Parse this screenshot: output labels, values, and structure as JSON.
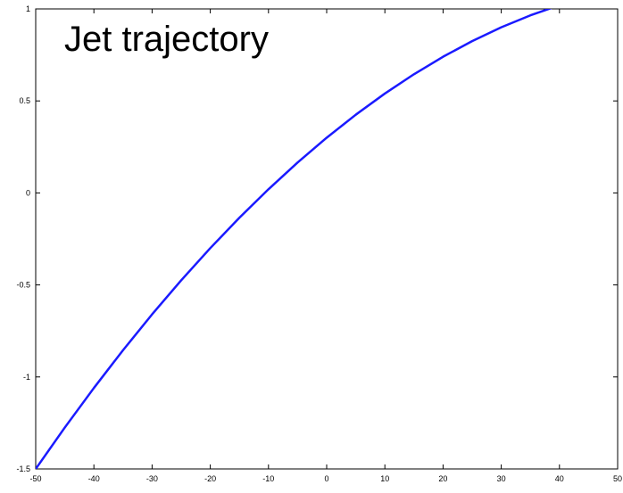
{
  "chart_data": {
    "type": "line",
    "title": "Jet trajectory",
    "xlabel": "",
    "ylabel": "",
    "xlim": [
      -50,
      50
    ],
    "ylim": [
      -1.5,
      1
    ],
    "grid": false,
    "x_ticks": [
      "-50",
      "-40",
      "-30",
      "-20",
      "-10",
      "0",
      "10",
      "20",
      "30",
      "40",
      "50"
    ],
    "y_ticks": [
      "-1.5",
      "-1",
      "-0.5",
      "0",
      "0.5",
      "1"
    ],
    "series": [
      {
        "color": "#1a1aff",
        "x": [
          -50,
          -45,
          -40,
          -35,
          -30,
          -25,
          -20,
          -15,
          -10,
          -5,
          0,
          5,
          10,
          15,
          20,
          25,
          30,
          35,
          40,
          45,
          50
        ],
        "y": [
          -1.5,
          -1.275,
          -1.06,
          -0.855,
          -0.66,
          -0.475,
          -0.3,
          -0.135,
          0.02,
          0.165,
          0.3,
          0.425,
          0.54,
          0.645,
          0.74,
          0.825,
          0.9,
          0.965,
          1.02,
          1.065,
          1.1
        ]
      }
    ]
  }
}
